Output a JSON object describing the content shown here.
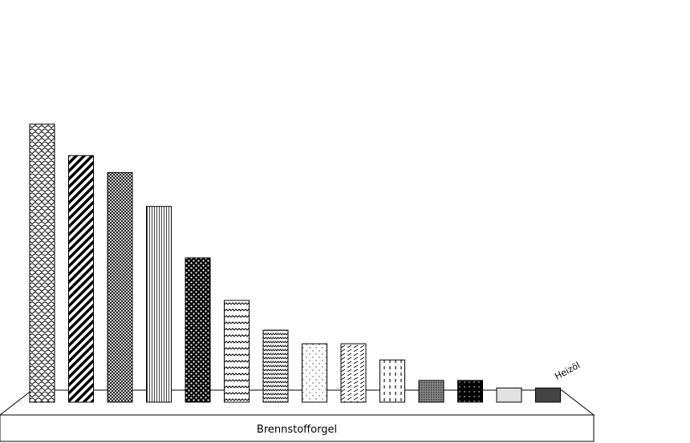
{
  "chart_data": {
    "type": "bar",
    "x_axis_label": "Brennstofforgel",
    "series_name": "Heizöl",
    "ylim": [
      0,
      100
    ],
    "grid": false,
    "legend": "none",
    "values": [
      100,
      88.7,
      82.6,
      70.4,
      51.9,
      36.6,
      25.9,
      21.0,
      21.0,
      15.2,
      7.8,
      7.8,
      5.1,
      5.1
    ],
    "fills": [
      {
        "pattern": "scales",
        "color": "#000000"
      },
      {
        "pattern": "diagonal-wide",
        "color": "#000000"
      },
      {
        "pattern": "crosshatch-dense",
        "color": "#000000"
      },
      {
        "pattern": "vertical-fine",
        "color": "#000000"
      },
      {
        "pattern": "checker-dark",
        "color": "#000000"
      },
      {
        "pattern": "waves",
        "color": "#000000"
      },
      {
        "pattern": "zigzag",
        "color": "#000000"
      },
      {
        "pattern": "dots-sparse",
        "color": "#000000"
      },
      {
        "pattern": "diagonal-dashes",
        "color": "#000000"
      },
      {
        "pattern": "vertical-dashes",
        "color": "#000000"
      },
      {
        "pattern": "mesh",
        "color": "#000000"
      },
      {
        "pattern": "dots-on-black",
        "color": "#000000"
      },
      {
        "pattern": "solid",
        "color": "#e2e2e2"
      },
      {
        "pattern": "solid",
        "color": "#444444"
      }
    ]
  }
}
